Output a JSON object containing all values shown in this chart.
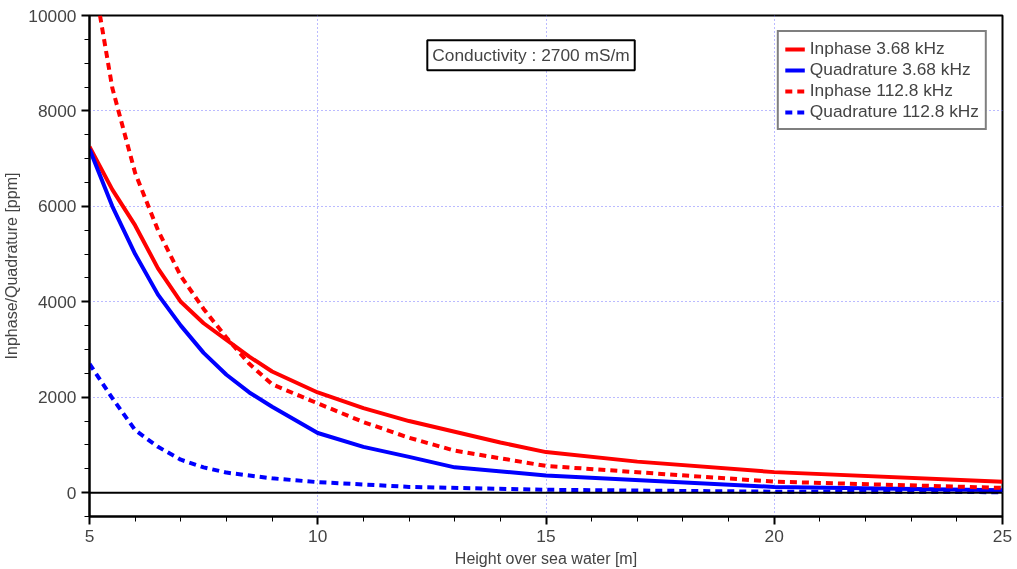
{
  "chart_data": {
    "type": "line",
    "xlabel": "Height over sea water [m]",
    "ylabel": "Inphase/Quadrature [ppm]",
    "xlim": [
      5,
      25
    ],
    "ylim": [
      -500,
      10000
    ],
    "xticks": [
      5,
      10,
      15,
      20,
      25
    ],
    "yticks": [
      0,
      2000,
      4000,
      6000,
      8000,
      10000
    ],
    "grid": true,
    "legend": "top right",
    "annotations": [
      "Conductivity : 2700 mS/m"
    ],
    "ref_lines": [
      {
        "axis": "y",
        "value": 0,
        "color": "#000000",
        "line_style": "solid"
      }
    ],
    "series": [
      {
        "name": "Inphase 3.68 kHz",
        "color": "#ff0000",
        "line_style": "solid",
        "x": [
          5,
          5.5,
          6,
          6.5,
          7,
          7.5,
          8,
          8.5,
          9,
          10,
          11,
          12,
          14,
          15,
          17,
          20,
          25
        ],
        "values": [
          7250,
          6350,
          5600,
          4700,
          4000,
          3550,
          3200,
          2850,
          2540,
          2100,
          1770,
          1500,
          1050,
          850,
          650,
          430,
          230
        ]
      },
      {
        "name": "Quadrature 3.68 kHz",
        "color": "#0000ff",
        "line_style": "solid",
        "x": [
          5,
          5.5,
          6,
          6.5,
          7,
          7.5,
          8,
          8.5,
          9,
          10,
          11,
          12,
          13,
          15,
          20,
          25
        ],
        "values": [
          7200,
          6000,
          5000,
          4150,
          3500,
          2930,
          2470,
          2100,
          1800,
          1250,
          960,
          750,
          530,
          360,
          120,
          50
        ]
      },
      {
        "name": "Inphase 112.8 kHz",
        "color": "#ff0000",
        "line_style": "dashed",
        "x": [
          5.23,
          5.5,
          6,
          6.5,
          7,
          7.5,
          8,
          8.5,
          9,
          10,
          11,
          12,
          13,
          15,
          20,
          25
        ],
        "values": [
          10000,
          8480,
          6700,
          5500,
          4540,
          3850,
          3250,
          2700,
          2270,
          1870,
          1480,
          1150,
          880,
          560,
          230,
          100
        ]
      },
      {
        "name": "Quadrature 112.8 kHz",
        "color": "#0000ff",
        "line_style": "dashed",
        "x": [
          5,
          5.5,
          6,
          6.5,
          7,
          7.5,
          8,
          9,
          10,
          12,
          15,
          20,
          25
        ],
        "values": [
          2700,
          1980,
          1310,
          960,
          690,
          530,
          420,
          300,
          220,
          120,
          60,
          20,
          10
        ]
      }
    ]
  }
}
